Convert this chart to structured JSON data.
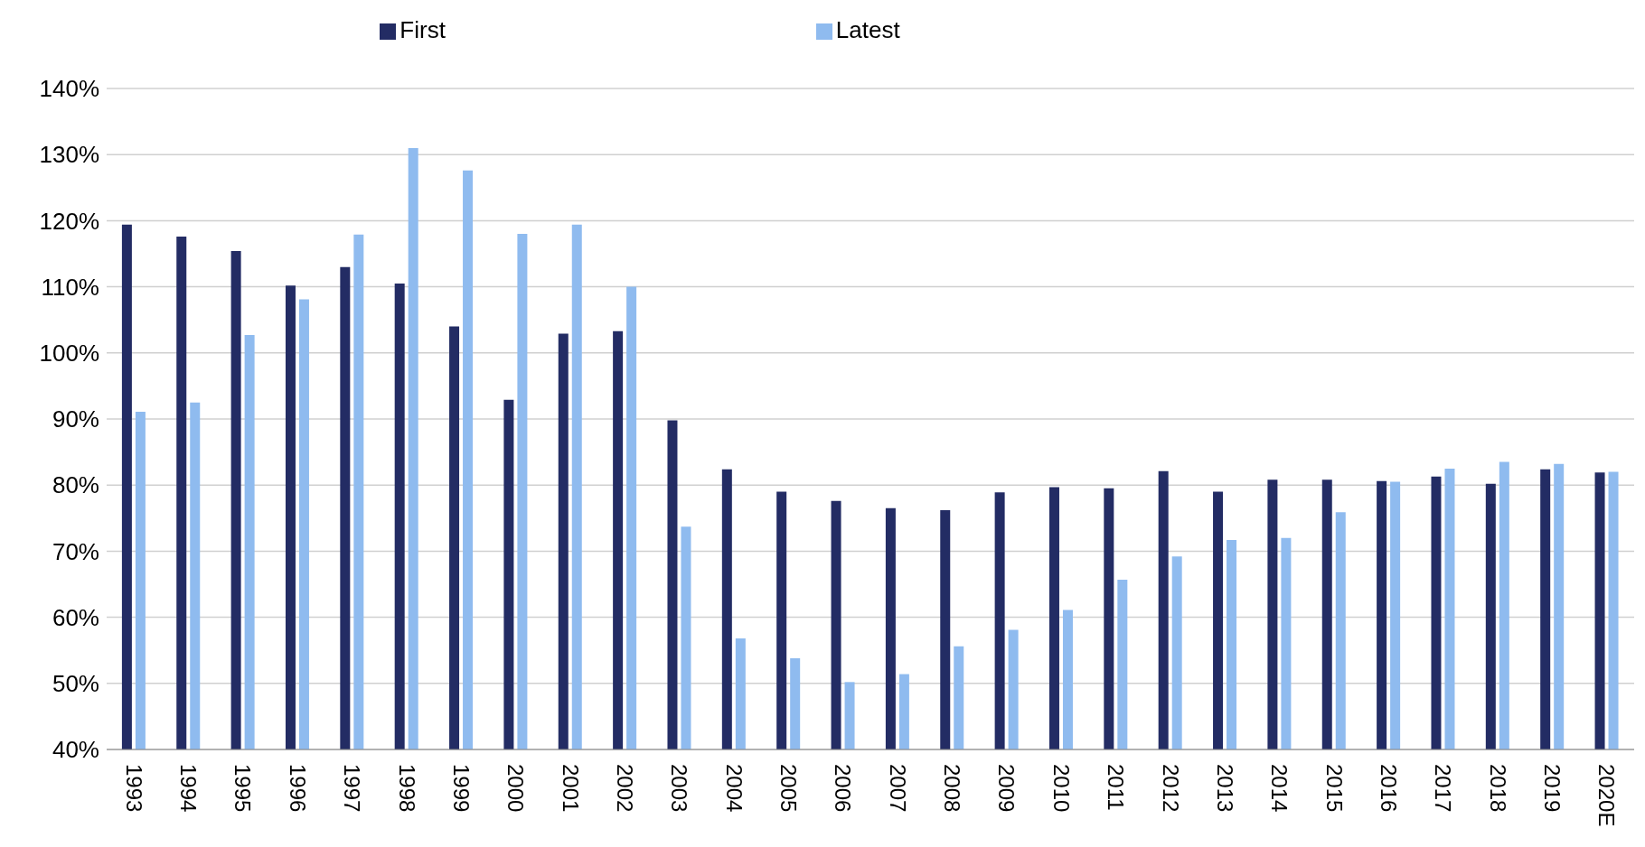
{
  "chart_data": {
    "type": "bar",
    "categories": [
      "1993",
      "1994",
      "1995",
      "1996",
      "1997",
      "1998",
      "1999",
      "2000",
      "2001",
      "2002",
      "2003",
      "2004",
      "2005",
      "2006",
      "2007",
      "2008",
      "2009",
      "2010",
      "2011",
      "2012",
      "2013",
      "2014",
      "2015",
      "2016",
      "2017",
      "2018",
      "2019",
      "2020E"
    ],
    "series": [
      {
        "name": "First",
        "color": "#232c64",
        "values": [
          119.4,
          117.6,
          115.4,
          110.2,
          113,
          110.5,
          104,
          92.9,
          102.9,
          103.3,
          89.8,
          82.4,
          79,
          77.6,
          76.5,
          76.2,
          78.9,
          79.7,
          79.5,
          82.1,
          79,
          80.8,
          80.8,
          80.6,
          81.3,
          80.2,
          82.4,
          81.9
        ]
      },
      {
        "name": "Latest",
        "color": "#8fbbef",
        "values": [
          91.1,
          92.5,
          102.7,
          108.1,
          117.9,
          131,
          127.6,
          118,
          119.4,
          110,
          73.7,
          56.8,
          53.8,
          50.2,
          51.4,
          55.6,
          58.1,
          61.1,
          65.7,
          69.2,
          71.7,
          72,
          75.9,
          80.5,
          82.5,
          83.5,
          83.2,
          82
        ]
      }
    ],
    "ylim": [
      40,
      140
    ],
    "yticks": [
      {
        "value": 40,
        "label": "40%"
      },
      {
        "value": 50,
        "label": "50%"
      },
      {
        "value": 60,
        "label": "60%"
      },
      {
        "value": 70,
        "label": "70%"
      },
      {
        "value": 80,
        "label": "80%"
      },
      {
        "value": 90,
        "label": "90%"
      },
      {
        "value": 100,
        "label": "100%"
      },
      {
        "value": 110,
        "label": "110%"
      },
      {
        "value": 120,
        "label": "120%"
      },
      {
        "value": 130,
        "label": "130%"
      },
      {
        "value": 140,
        "label": "140%"
      }
    ],
    "grid": "y",
    "legend": "top"
  }
}
